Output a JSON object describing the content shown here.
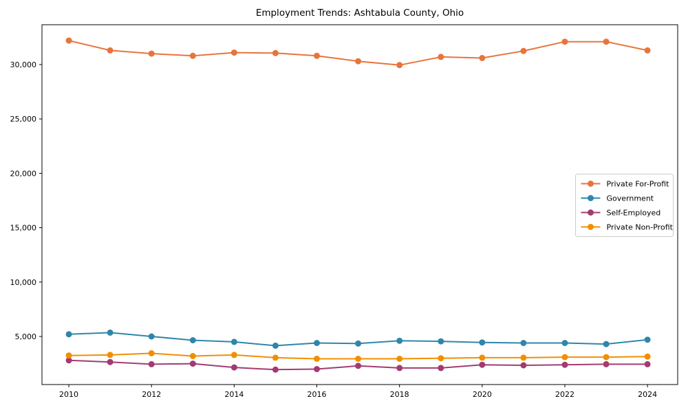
{
  "page": {
    "title": "Employment Trends: Ashtabula County, Ohio"
  },
  "chart_data": {
    "type": "line",
    "title": "Employment Trends: Ashtabula County, Ohio",
    "xlabel": "",
    "ylabel": "",
    "grid": false,
    "legend_position": "center right",
    "marker": "circle",
    "x": [
      2010,
      2011,
      2012,
      2013,
      2014,
      2015,
      2016,
      2017,
      2018,
      2019,
      2020,
      2021,
      2022,
      2023,
      2024
    ],
    "x_ticks": [
      2010,
      2012,
      2014,
      2016,
      2018,
      2020,
      2022,
      2024
    ],
    "x_tick_labels": [
      "2010",
      "2012",
      "2014",
      "2016",
      "2018",
      "2020",
      "2022",
      "2024"
    ],
    "y_ticks": [
      5000,
      10000,
      15000,
      20000,
      25000,
      30000
    ],
    "y_tick_labels": [
      "5,000",
      "10,000",
      "15,000",
      "20,000",
      "25,000",
      "30,000"
    ],
    "xlim": [
      2009.35,
      2024.73
    ],
    "ylim": [
      580,
      33660
    ],
    "series": [
      {
        "name": "Private For-Profit",
        "color": "#e8743b",
        "values": [
          32200,
          31300,
          31000,
          30800,
          31100,
          31050,
          30800,
          30300,
          29950,
          30700,
          30600,
          31250,
          32100,
          32100,
          31300
        ]
      },
      {
        "name": "Government",
        "color": "#2e86ab",
        "values": [
          5200,
          5350,
          5000,
          4650,
          4500,
          4150,
          4400,
          4350,
          4600,
          4550,
          4450,
          4400,
          4400,
          4300,
          4700
        ]
      },
      {
        "name": "Self-Employed",
        "color": "#a23b72",
        "values": [
          2800,
          2650,
          2450,
          2500,
          2150,
          1950,
          2000,
          2300,
          2100,
          2100,
          2400,
          2350,
          2400,
          2450,
          2450
        ]
      },
      {
        "name": "Private Non-Profit",
        "color": "#f18f01",
        "values": [
          3250,
          3300,
          3450,
          3200,
          3300,
          3050,
          2950,
          2950,
          2950,
          3000,
          3050,
          3050,
          3100,
          3100,
          3150
        ]
      }
    ]
  }
}
